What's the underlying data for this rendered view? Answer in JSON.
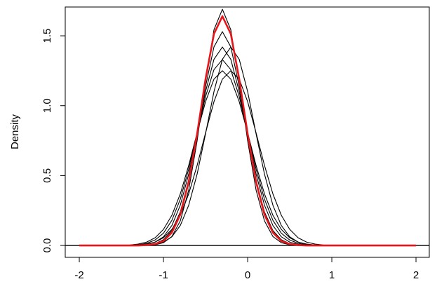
{
  "chart_data": {
    "type": "line",
    "y_label": "Density",
    "x": [
      -2,
      -1.9,
      -1.8,
      -1.7,
      -1.6,
      -1.5,
      -1.4,
      -1.3,
      -1.2,
      -1.1,
      -1,
      -0.9,
      -0.8,
      -0.7,
      -0.6,
      -0.5,
      -0.4,
      -0.3,
      -0.2,
      -0.1,
      0,
      0.1,
      0.2,
      0.3,
      0.4,
      0.5,
      0.6,
      0.7,
      0.8,
      0.9,
      1,
      1.1,
      1.2,
      1.3,
      1.4,
      1.5,
      1.6,
      1.7,
      1.8,
      1.9,
      2
    ],
    "series": [
      {
        "color": "#000000",
        "values": [
          0,
          0,
          0,
          0,
          0,
          0,
          0.002,
          0.005,
          0.015,
          0.039,
          0.088,
          0.18,
          0.331,
          0.547,
          0.806,
          1.065,
          1.258,
          1.33,
          1.258,
          1.065,
          0.806,
          0.547,
          0.331,
          0.18,
          0.088,
          0.039,
          0.015,
          0.005,
          0.002,
          0,
          0,
          0,
          0,
          0,
          0,
          0,
          0,
          0,
          0,
          0,
          0
        ]
      },
      {
        "color": "#000000",
        "values": [
          0,
          0,
          0,
          0,
          0,
          0,
          0.001,
          0.002,
          0.008,
          0.024,
          0.062,
          0.143,
          0.288,
          0.511,
          0.799,
          1.101,
          1.332,
          1.42,
          1.332,
          1.101,
          0.799,
          0.511,
          0.288,
          0.143,
          0.062,
          0.024,
          0.008,
          0.002,
          0.001,
          0,
          0,
          0,
          0,
          0,
          0,
          0,
          0,
          0,
          0,
          0,
          0
        ]
      },
      {
        "color": "#000000",
        "values": [
          0,
          0,
          0,
          0,
          0,
          0,
          0,
          0.001,
          0.002,
          0.008,
          0.024,
          0.062,
          0.143,
          0.288,
          0.511,
          0.799,
          1.101,
          1.332,
          1.42,
          1.332,
          1.101,
          0.799,
          0.511,
          0.288,
          0.143,
          0.062,
          0.024,
          0.008,
          0.002,
          0.001,
          0,
          0,
          0,
          0,
          0,
          0,
          0,
          0,
          0,
          0,
          0
        ]
      },
      {
        "color": "#000000",
        "values": [
          0,
          0,
          0,
          0,
          0,
          0,
          0,
          0.001,
          0.004,
          0.013,
          0.041,
          0.107,
          0.24,
          0.468,
          0.785,
          1.138,
          1.421,
          1.53,
          1.421,
          1.138,
          0.785,
          0.468,
          0.24,
          0.107,
          0.041,
          0.013,
          0.004,
          0.001,
          0,
          0,
          0,
          0,
          0,
          0,
          0,
          0,
          0,
          0,
          0,
          0,
          0
        ]
      },
      {
        "color": "#000000",
        "values": [
          0,
          0,
          0,
          0,
          0,
          0,
          0,
          0,
          0.001,
          0.005,
          0.02,
          0.064,
          0.176,
          0.397,
          0.749,
          1.176,
          1.543,
          1.69,
          1.543,
          1.176,
          0.749,
          0.397,
          0.176,
          0.064,
          0.02,
          0.005,
          0.001,
          0,
          0,
          0,
          0,
          0,
          0,
          0,
          0,
          0,
          0,
          0,
          0,
          0,
          0
        ]
      },
      {
        "color": "#000000",
        "values": [
          0,
          0,
          0,
          0,
          0,
          0,
          0.001,
          0.003,
          0.01,
          0.024,
          0.055,
          0.115,
          0.216,
          0.369,
          0.573,
          0.806,
          1.029,
          1.19,
          1.25,
          1.19,
          1.029,
          0.806,
          0.573,
          0.369,
          0.216,
          0.115,
          0.055,
          0.024,
          0.01,
          0.003,
          0.001,
          0,
          0,
          0,
          0,
          0,
          0,
          0,
          0,
          0,
          0
        ]
      },
      {
        "color": "#000000",
        "values": [
          0,
          0,
          0,
          0,
          0,
          0.001,
          0.003,
          0.01,
          0.024,
          0.055,
          0.115,
          0.216,
          0.369,
          0.573,
          0.806,
          1.029,
          1.19,
          1.25,
          1.19,
          1.029,
          0.806,
          0.573,
          0.369,
          0.216,
          0.115,
          0.055,
          0.024,
          0.01,
          0.003,
          0.001,
          0,
          0,
          0,
          0,
          0,
          0,
          0,
          0,
          0,
          0,
          0
        ]
      },
      {
        "color": "#e8161b",
        "values": [
          0,
          0,
          0,
          0,
          0,
          0,
          0,
          0,
          0.003,
          0.01,
          0.032,
          0.092,
          0.221,
          0.456,
          0.799,
          1.191,
          1.514,
          1.64,
          1.514,
          1.191,
          0.799,
          0.456,
          0.221,
          0.092,
          0.032,
          0.01,
          0.003,
          0,
          0,
          0,
          0,
          0,
          0,
          0,
          0,
          0,
          0,
          0,
          0,
          0,
          0
        ]
      }
    ],
    "xlim": [
      -2.167,
      2.158
    ],
    "ylim": [
      -0.085,
      1.706
    ],
    "xticks": [
      -2,
      -1,
      0,
      1,
      2
    ],
    "yticks": [
      {
        "value": 0,
        "label": "0.0"
      },
      0.5,
      {
        "value": 1,
        "label": "1.0"
      },
      1.5
    ]
  }
}
